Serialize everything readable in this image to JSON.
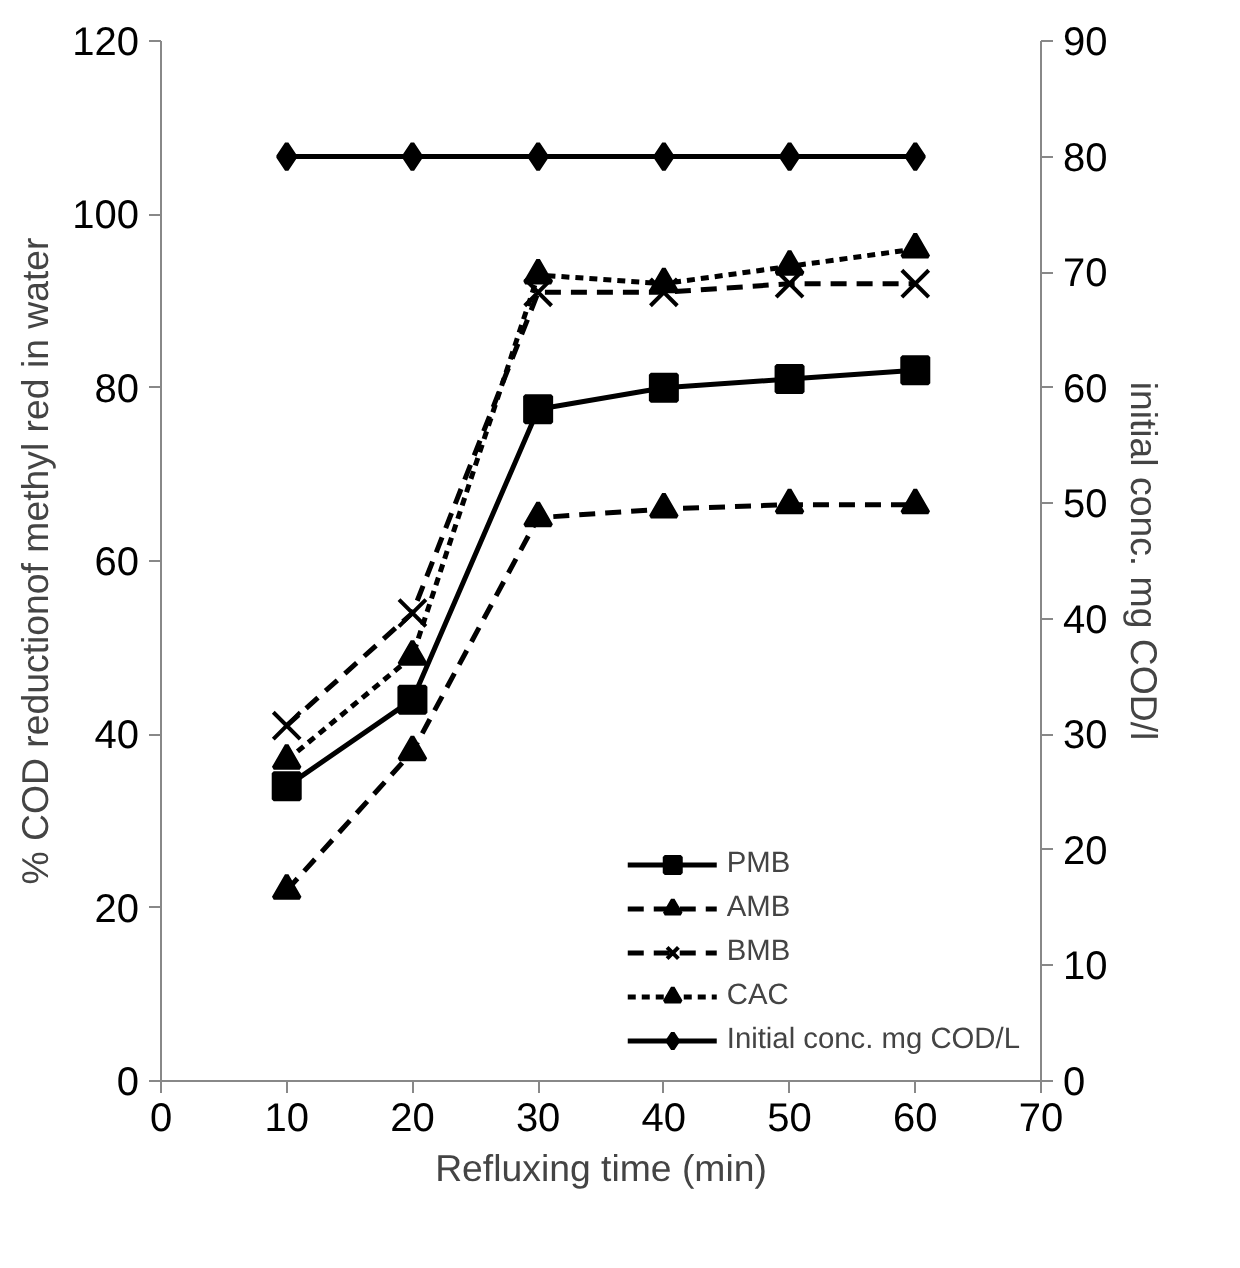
{
  "chart_data": {
    "type": "line",
    "x": [
      10,
      20,
      30,
      40,
      50,
      60
    ],
    "xlabel": "Refluxing time (min)",
    "ylabel": "% COD reductionof methyl red in water",
    "y2label": "initial conc. mg COD/l",
    "xlim": [
      0,
      70
    ],
    "xticks": [
      0,
      10,
      20,
      30,
      40,
      50,
      60,
      70
    ],
    "ylim": [
      0,
      120
    ],
    "yticks": [
      0,
      20,
      40,
      60,
      80,
      100,
      120
    ],
    "y2lim": [
      0,
      90
    ],
    "y2ticks": [
      0,
      10,
      20,
      30,
      40,
      50,
      60,
      70,
      80,
      90
    ],
    "grid": false,
    "legend": "bottom right",
    "series": [
      {
        "name": "PMB",
        "color": "#000000",
        "marker": "square",
        "line_style": "solid",
        "values": [
          34,
          44,
          77.5,
          80,
          81,
          82
        ]
      },
      {
        "name": "AMB",
        "color": "#000000",
        "marker": "triangle",
        "line_style": "dashed",
        "values": [
          22,
          38,
          65,
          66,
          66.5,
          66.5
        ]
      },
      {
        "name": "BMB",
        "color": "#000000",
        "marker": "cross",
        "line_style": "dashed",
        "values": [
          41,
          54,
          91,
          91,
          92,
          92
        ]
      },
      {
        "name": "CAC",
        "color": "#000000",
        "marker": "triangle",
        "line_style": "dotted",
        "values": [
          37,
          49,
          93,
          92,
          94,
          96
        ]
      },
      {
        "name": "Initial conc. mg COD/L",
        "color": "#000000",
        "marker": "diamond",
        "line_style": "solid",
        "axis": "y2",
        "values": [
          80,
          80,
          80,
          80,
          80,
          80
        ]
      }
    ]
  }
}
